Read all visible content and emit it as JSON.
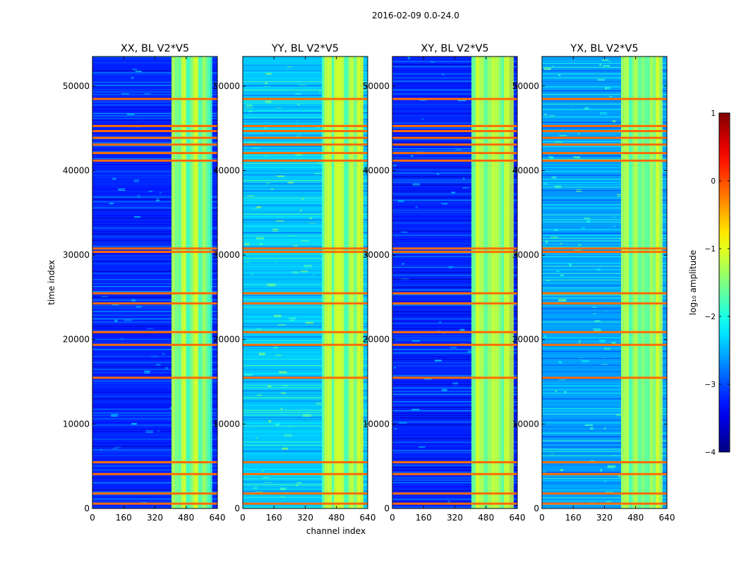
{
  "chart_data": {
    "type": "heatmap",
    "suptitle": "2016-02-09 0.0-24.0",
    "xlabel": "channel index",
    "ylabel": "time index",
    "xlim": [
      0,
      640
    ],
    "ylim": [
      0,
      53500
    ],
    "x_ticks": [
      0,
      160,
      320,
      480,
      640
    ],
    "x_tick_labels": [
      "0",
      "160",
      "320",
      "480",
      "640"
    ],
    "y_ticks": [
      0,
      10000,
      20000,
      30000,
      40000,
      50000
    ],
    "y_tick_labels": [
      "0",
      "10000",
      "20000",
      "30000",
      "40000",
      "50000"
    ],
    "panels": [
      {
        "title": "XX, BL V2*V5",
        "baseline_log_amplitude": -3.2
      },
      {
        "title": "YY, BL V2*V5",
        "baseline_log_amplitude": -2.4
      },
      {
        "title": "XY, BL V2*V5",
        "baseline_log_amplitude": -3.2
      },
      {
        "title": "YX, BL V2*V5",
        "baseline_log_amplitude": -2.6
      }
    ],
    "colorbar": {
      "label": "log₁₀ amplitude",
      "range": [
        -4,
        1
      ],
      "ticks": [
        1,
        0,
        -1,
        -2,
        -3,
        -4
      ],
      "tick_labels": [
        "1",
        "0",
        "−1",
        "−2",
        "−3",
        "−4"
      ],
      "colormap": "jet"
    },
    "bright_channel_band": [
      405,
      600
    ],
    "bright_band_log_amplitude": -1.2,
    "rfi_rows_time_index": [
      700,
      1900,
      4200,
      5600,
      15600,
      19500,
      21000,
      24400,
      25600,
      30500,
      30900,
      41300,
      42200,
      43200,
      44000,
      44800,
      45400,
      48600
    ]
  }
}
